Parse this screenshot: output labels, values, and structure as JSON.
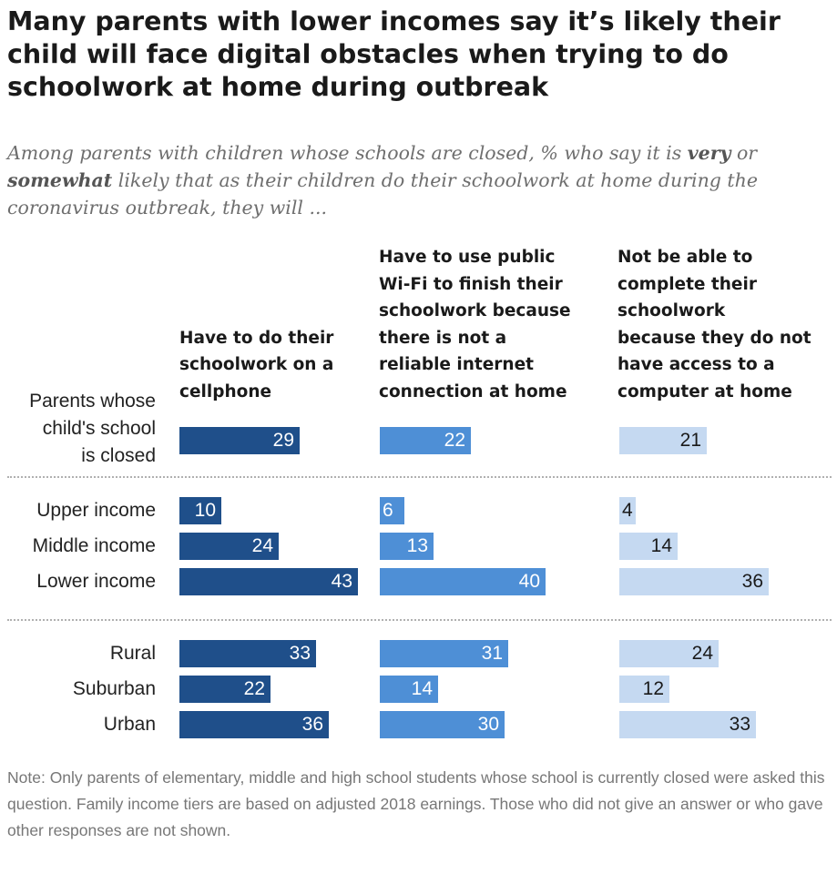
{
  "title": "Many parents with lower incomes say it’s likely their child will face digital obstacles when trying to do schoolwork at home during outbreak",
  "subtitle": {
    "part1": "Among parents with children whose schools are closed, % who say it is ",
    "very": "very",
    "part2": " or ",
    "somewhat": "somewhat",
    "part3": " likely that as their children do their schoolwork at home during the coronavirus outbreak, they will ..."
  },
  "note": "Note: Only parents of elementary, middle and high school students whose school is currently closed were asked this question. Family income tiers are based on adjusted 2018 earnings. Those who did not give an answer or who gave other responses are not shown.",
  "colors": {
    "cellphone": "#1f4f8a",
    "wifi": "#4e8fd6",
    "computer": "#c5d9f1",
    "label_dark_bg": "#ffffff",
    "label_light_bg": "#1a1a1a"
  },
  "chart_data": {
    "type": "bar",
    "orientation": "horizontal",
    "title": "Many parents with lower incomes say it’s likely their child will face digital obstacles when trying to do schoolwork at home during outbreak",
    "categories": [
      "Parents whose\nchild's school\nis closed",
      "Upper income",
      "Middle income",
      "Lower income",
      "Rural",
      "Suburban",
      "Urban"
    ],
    "series": [
      {
        "name": "Have to do their\nschoolwork on a\ncellphone",
        "values": [
          29,
          10,
          24,
          43,
          33,
          22,
          36
        ]
      },
      {
        "name": "Have to use public\nWi-Fi to finish their\nschoolwork because\nthere is not a\nreliable internet\nconnection at home",
        "values": [
          22,
          6,
          13,
          40,
          31,
          14,
          30
        ]
      },
      {
        "name": "Not be able to\ncomplete their\nschoolwork\nbecause they do not\nhave access to a\ncomputer at home",
        "values": [
          21,
          4,
          14,
          36,
          24,
          12,
          33
        ]
      }
    ],
    "xlim": [
      0,
      50
    ],
    "units": "%"
  }
}
